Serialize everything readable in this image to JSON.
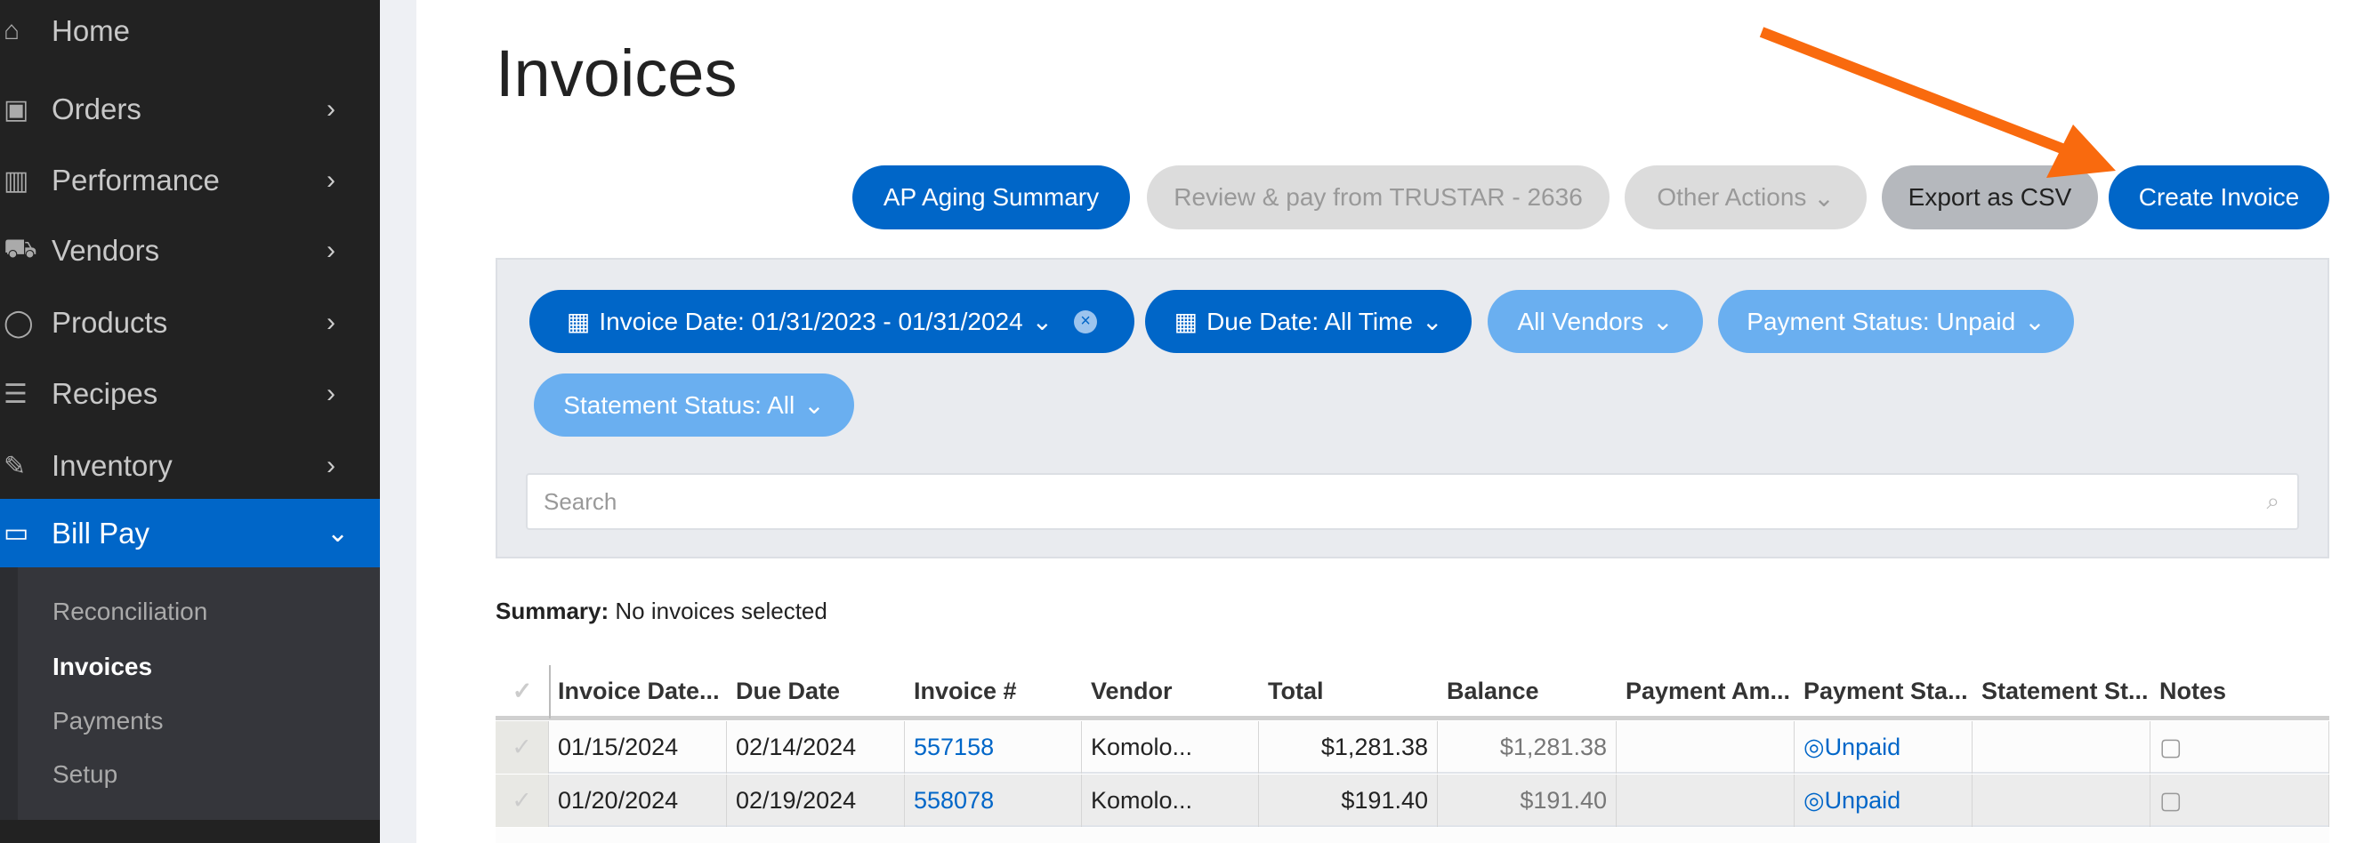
{
  "sidebar": {
    "items": [
      {
        "label": "Home",
        "icon": "home-icon"
      },
      {
        "label": "Orders",
        "icon": "orders-icon"
      },
      {
        "label": "Performance",
        "icon": "chart-icon"
      },
      {
        "label": "Vendors",
        "icon": "truck-icon"
      },
      {
        "label": "Products",
        "icon": "apple-icon"
      },
      {
        "label": "Recipes",
        "icon": "list-icon"
      },
      {
        "label": "Inventory",
        "icon": "edit-icon"
      },
      {
        "label": "Bill Pay",
        "icon": "card-icon"
      }
    ],
    "sub_items": [
      "Reconciliation",
      "Invoices",
      "Payments",
      "Setup"
    ]
  },
  "page": {
    "title": "Invoices"
  },
  "actions": {
    "ap_aging": "AP Aging Summary",
    "review_pay": "Review & pay from TRUSTAR - 2636",
    "other": "Other Actions",
    "export": "Export as CSV",
    "create": "Create Invoice"
  },
  "filters": {
    "invoice_date": "Invoice Date: 01/31/2023 - 01/31/2024",
    "due_date": "Due Date: All Time",
    "vendors": "All Vendors",
    "payment_status": "Payment Status: Unpaid",
    "statement_status": "Statement Status: All"
  },
  "search": {
    "placeholder": "Search"
  },
  "summary": {
    "label": "Summary:",
    "value": "No invoices selected"
  },
  "table": {
    "headers": [
      "Invoice Date...",
      "Due Date",
      "Invoice #",
      "Vendor",
      "Total",
      "Balance",
      "Payment Am...",
      "Payment Sta...",
      "Statement St...",
      "Notes"
    ],
    "rows": [
      {
        "invoice_date": "01/15/2024",
        "due_date": "02/14/2024",
        "invoice_no": "557158",
        "vendor": "Komolo...",
        "total": "$1,281.38",
        "balance": "$1,281.38",
        "payment_amount": "",
        "payment_status": "Unpaid",
        "statement_status": ""
      },
      {
        "invoice_date": "01/20/2024",
        "due_date": "02/19/2024",
        "invoice_no": "558078",
        "vendor": "Komolo...",
        "total": "$191.40",
        "balance": "$191.40",
        "payment_amount": "",
        "payment_status": "Unpaid",
        "statement_status": ""
      }
    ]
  },
  "colors": {
    "brand": "#0066c8",
    "chip_light": "#6aaff0",
    "arrow": "#f96a0e"
  }
}
